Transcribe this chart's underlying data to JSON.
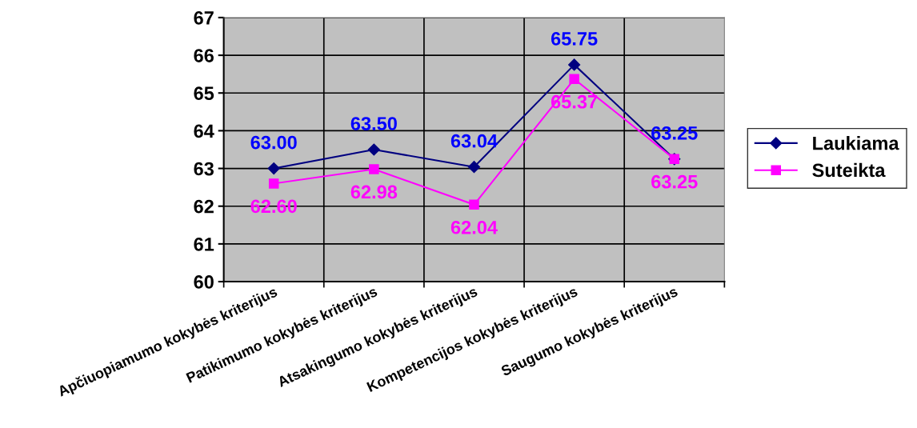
{
  "chart_data": {
    "type": "line",
    "categories": [
      "Apčiuopiamumo kokybės kriterijus",
      "Patikimumo kokybės kriterijus",
      "Atsakingumo kokybės kriterijus",
      "Kompetencijos kokybės kriterijus",
      "Saugumo kokybės kriterijus"
    ],
    "series": [
      {
        "name": "Laukiama",
        "color": "#000080",
        "marker": "diamond",
        "values": [
          63.0,
          63.5,
          63.04,
          65.75,
          63.25
        ],
        "value_labels": [
          "63.00",
          "63.50",
          "63.04",
          "65.75",
          "63.25"
        ]
      },
      {
        "name": "Suteikta",
        "color": "#ff00ff",
        "marker": "square",
        "values": [
          62.6,
          62.98,
          62.04,
          65.37,
          63.25
        ],
        "value_labels": [
          "62.60",
          "62.98",
          "62.04",
          "65.37",
          "63.25"
        ]
      }
    ],
    "ylim": [
      60,
      67
    ],
    "yticks": [
      60,
      61,
      62,
      63,
      64,
      65,
      66,
      67
    ],
    "grid": true,
    "legend": "right"
  }
}
